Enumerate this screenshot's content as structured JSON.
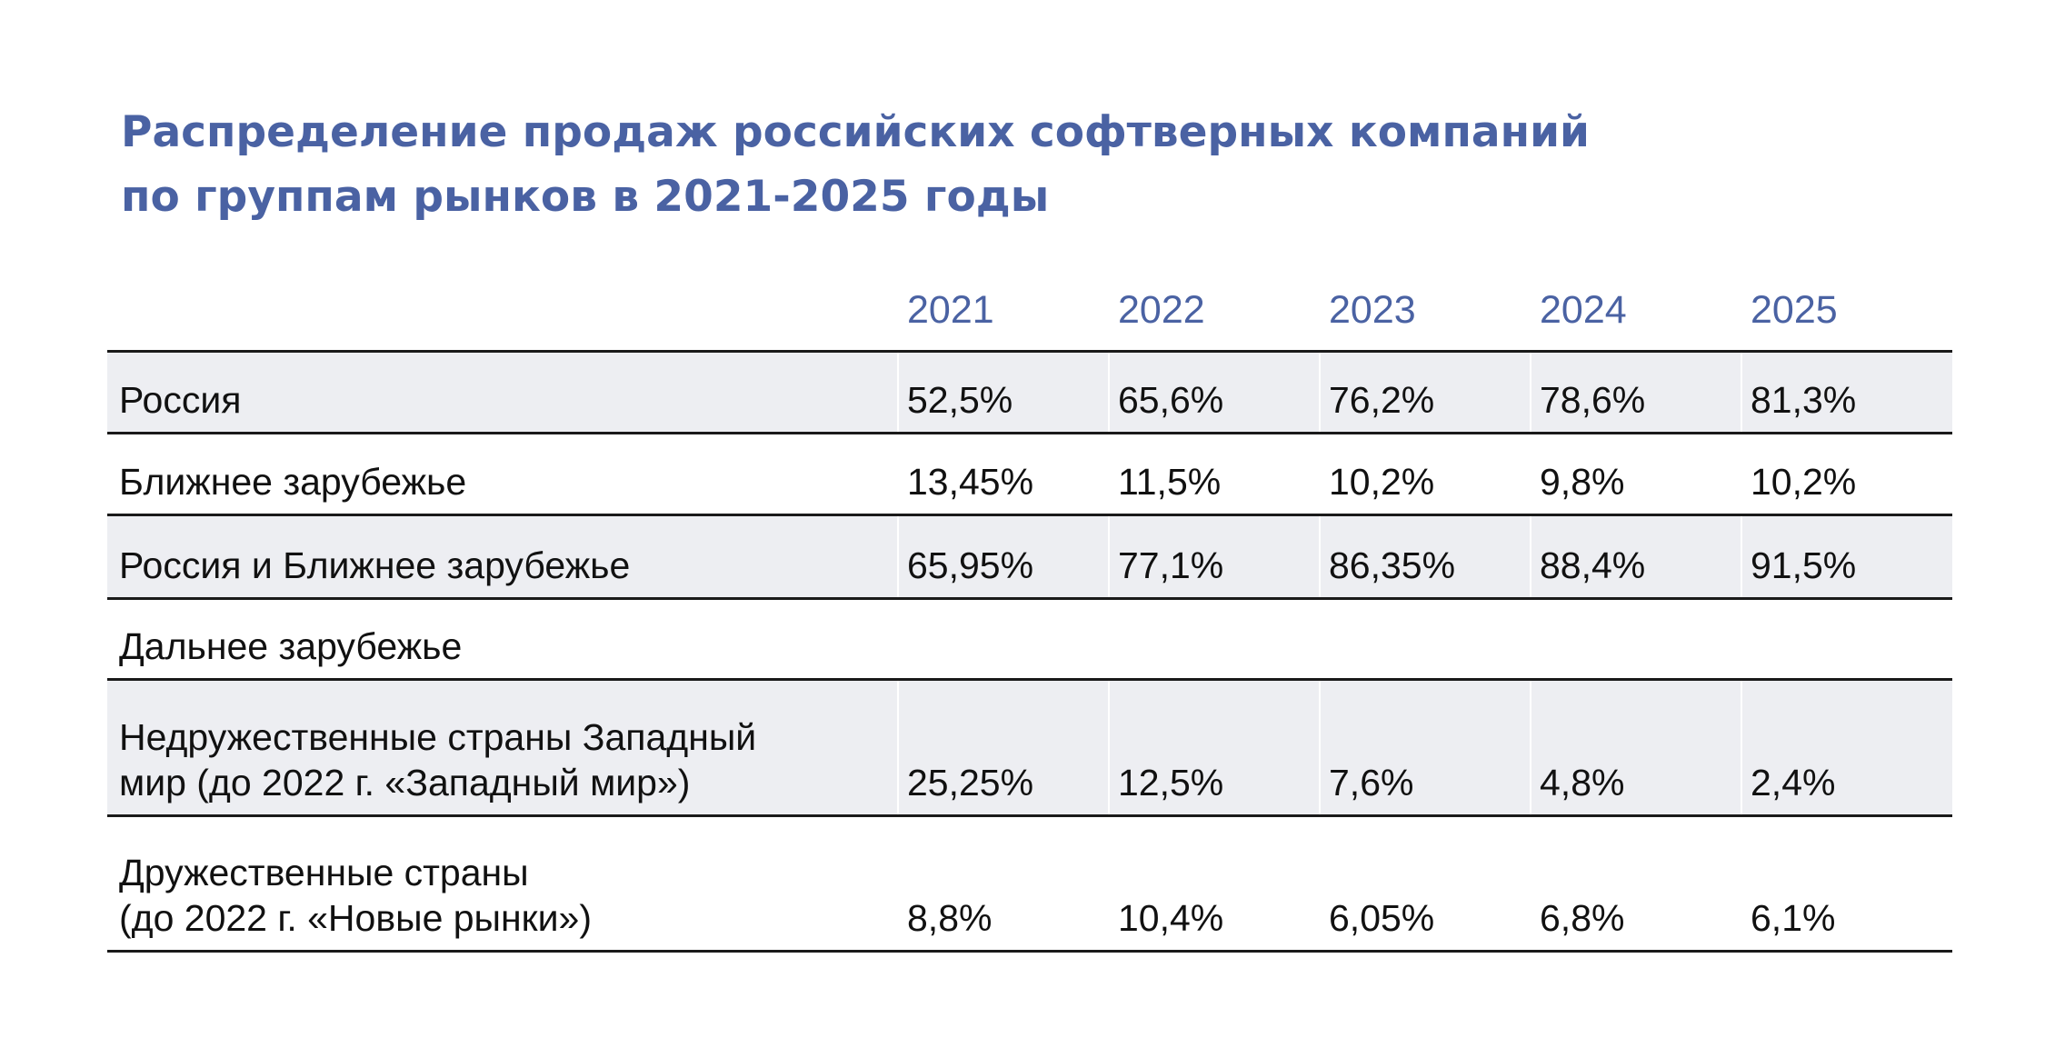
{
  "title": {
    "line1": "Распределение продаж российских софтверных компаний",
    "line2": "по группам рынков в 2021-2025 годы"
  },
  "table": {
    "years": [
      "2021",
      "2022",
      "2023",
      "2024",
      "2025"
    ],
    "rows": [
      {
        "label": "Россия",
        "values": [
          "52,5%",
          "65,6%",
          "76,2%",
          "78,6%",
          "81,3%"
        ]
      },
      {
        "label": "Ближнее зарубежье",
        "values": [
          "13,45%",
          "11,5%",
          "10,2%",
          "9,8%",
          "10,2%"
        ]
      },
      {
        "label": "Россия и Ближнее зарубежье",
        "values": [
          "65,95%",
          "77,1%",
          "86,35%",
          "88,4%",
          "91,5%"
        ]
      },
      {
        "label": "Дальнее зарубежье",
        "values": [
          "",
          "",
          "",
          "",
          ""
        ]
      },
      {
        "label": "Недружественные страны Западный\nмир (до 2022 г. «Западный мир»)",
        "values": [
          "25,25%",
          "12,5%",
          "7,6%",
          "4,8%",
          "2,4%"
        ]
      },
      {
        "label": "Дружественные страны\n(до 2022 г. «Новые рынки»)",
        "values": [
          "8,8%",
          "10,4%",
          "6,05%",
          "6,8%",
          "6,1%"
        ]
      }
    ]
  }
}
